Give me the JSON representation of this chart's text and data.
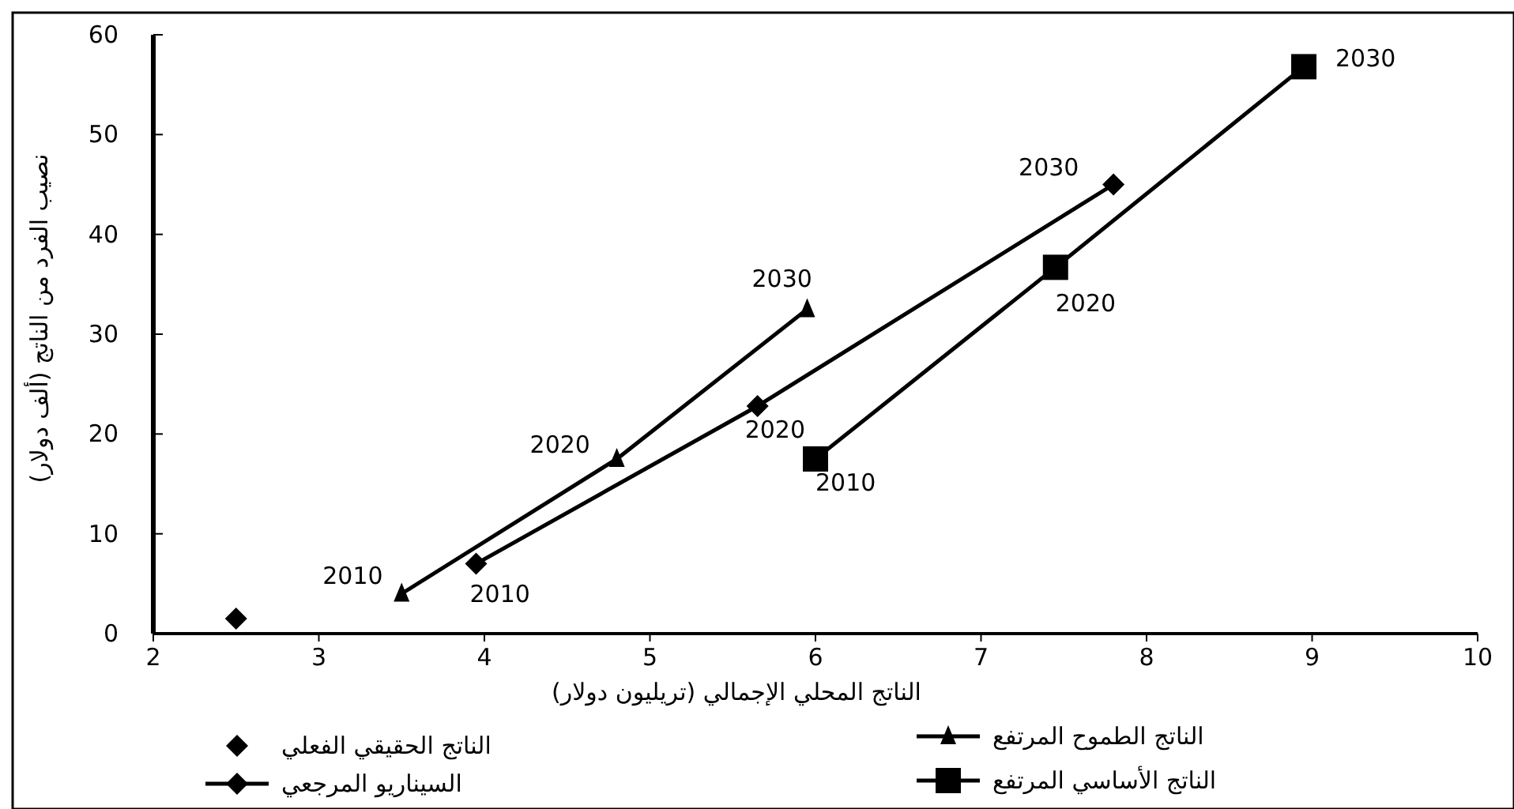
{
  "chart_data": {
    "type": "line",
    "xlabel": "الناتج المحلي الإجمالي (تريليون دولار)",
    "ylabel": "نصيب الفرد من الناتج (ألف دولار)",
    "xlim": [
      2,
      10
    ],
    "xticks": [
      2,
      3,
      4,
      5,
      6,
      7,
      8,
      9,
      10
    ],
    "ylim": [
      0,
      60
    ],
    "yticks": [
      0,
      10,
      20,
      30,
      40,
      50,
      60
    ],
    "grid": false,
    "legend": "bottom",
    "series": [
      {
        "name": "الناتج الحقيقي الفعلي",
        "type": "scatter",
        "marker": "diamond",
        "color": "#000000",
        "x": [
          2.5
        ],
        "values": [
          1.5
        ]
      },
      {
        "name": "السيناريو المرجعي",
        "type": "line",
        "marker": "diamond",
        "color": "#000000",
        "x": [
          3.95,
          5.65,
          7.8
        ],
        "values": [
          7,
          22.8,
          45
        ]
      },
      {
        "name": "الناتج الطموح المرتفع",
        "type": "line",
        "marker": "triangle",
        "color": "#000000",
        "x": [
          3.5,
          4.8,
          5.95
        ],
        "values": [
          4,
          17.5,
          32.5
        ]
      },
      {
        "name": "الناتج الأساسي المرتفع",
        "type": "line",
        "marker": "square",
        "color": "#000000",
        "x": [
          6,
          7.45,
          8.95
        ],
        "values": [
          17.5,
          36.7,
          56.8
        ]
      }
    ],
    "annotations": [
      {
        "text": "2010",
        "x": 3.5,
        "y": 4
      },
      {
        "text": "2020",
        "x": 4.8,
        "y": 17.5
      },
      {
        "text": "2030",
        "x": 5.95,
        "y": 32.5
      },
      {
        "text": "2010",
        "x": 3.95,
        "y": 7
      },
      {
        "text": "2020",
        "x": 5.65,
        "y": 22.8
      },
      {
        "text": "2030",
        "x": 7.8,
        "y": 45
      },
      {
        "text": "2010",
        "x": 6,
        "y": 17.5
      },
      {
        "text": "2020",
        "x": 7.45,
        "y": 36.7
      },
      {
        "text": "2030",
        "x": 8.95,
        "y": 56.8
      }
    ]
  }
}
